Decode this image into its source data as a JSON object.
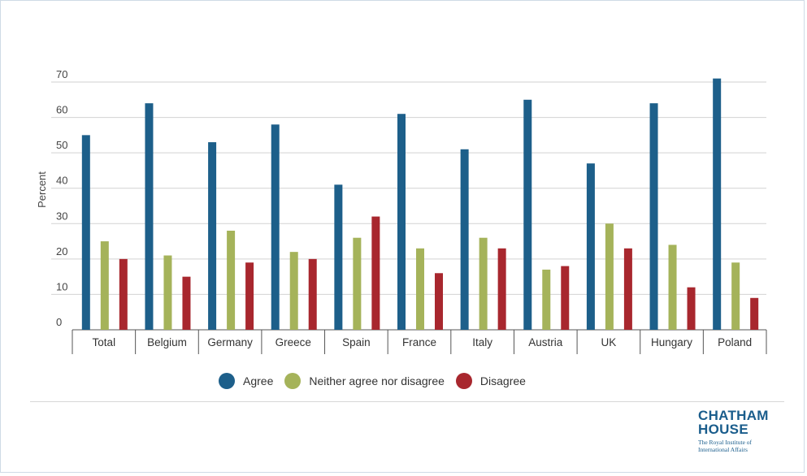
{
  "chart_data": {
    "type": "bar",
    "ylabel": "Percent",
    "ylim": [
      0,
      70
    ],
    "yticks": [
      0,
      10,
      20,
      30,
      40,
      50,
      60,
      70
    ],
    "grid": true,
    "legend_position": "bottom",
    "categories": [
      "Total",
      "Belgium",
      "Germany",
      "Greece",
      "Spain",
      "France",
      "Italy",
      "Austria",
      "UK",
      "Hungary",
      "Poland"
    ],
    "series": [
      {
        "name": "Agree",
        "color": "#1d5f8a",
        "values": [
          55,
          64,
          53,
          58,
          41,
          61,
          51,
          65,
          47,
          64,
          71
        ]
      },
      {
        "name": "Neither agree nor disagree",
        "color": "#a5b35a",
        "values": [
          25,
          21,
          28,
          22,
          26,
          23,
          26,
          17,
          30,
          24,
          19
        ]
      },
      {
        "name": "Disagree",
        "color": "#a8272e",
        "values": [
          20,
          15,
          19,
          20,
          32,
          16,
          23,
          18,
          23,
          12,
          9
        ]
      }
    ]
  },
  "logo": {
    "line1": "CHATHAM",
    "line2": "HOUSE",
    "subtitle": "The Royal Institute of International Affairs"
  }
}
